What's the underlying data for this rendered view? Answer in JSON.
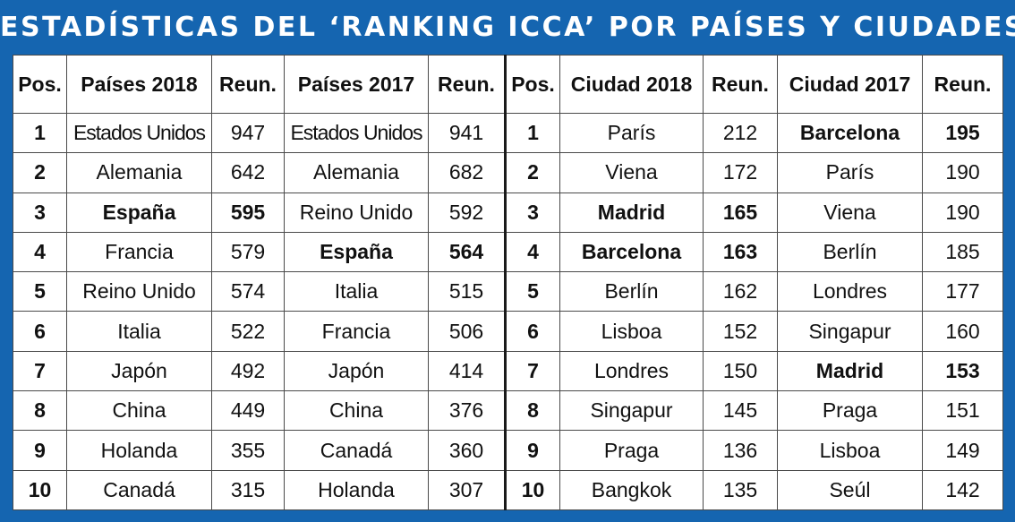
{
  "title": "ESTADÍSTICAS DEL ‘RANKING ICCA’ POR PAÍSES Y CIUDADES",
  "headers": [
    "Pos.",
    "Países 2018",
    "Reun.",
    "Países 2017",
    "Reun.",
    "Pos.",
    "Ciudad 2018",
    "Reun.",
    "Ciudad 2017",
    "Reun."
  ],
  "rows": [
    {
      "pos": "1",
      "pais2018": "Estados Unidos",
      "reun_p2018": "947",
      "pais2017": "Estados Unidos",
      "reun_p2017": "941",
      "pos2": "1",
      "ciudad2018": "París",
      "reun_c2018": "212",
      "ciudad2017": "Barcelona",
      "reun_c2017": "195"
    },
    {
      "pos": "2",
      "pais2018": "Alemania",
      "reun_p2018": "642",
      "pais2017": "Alemania",
      "reun_p2017": "682",
      "pos2": "2",
      "ciudad2018": "Viena",
      "reun_c2018": "172",
      "ciudad2017": "París",
      "reun_c2017": "190"
    },
    {
      "pos": "3",
      "pais2018": "España",
      "reun_p2018": "595",
      "pais2017": "Reino Unido",
      "reun_p2017": "592",
      "pos2": "3",
      "ciudad2018": "Madrid",
      "reun_c2018": "165",
      "ciudad2017": "Viena",
      "reun_c2017": "190"
    },
    {
      "pos": "4",
      "pais2018": "Francia",
      "reun_p2018": "579",
      "pais2017": "España",
      "reun_p2017": "564",
      "pos2": "4",
      "ciudad2018": "Barcelona",
      "reun_c2018": "163",
      "ciudad2017": "Berlín",
      "reun_c2017": "185"
    },
    {
      "pos": "5",
      "pais2018": "Reino Unido",
      "reun_p2018": "574",
      "pais2017": "Italia",
      "reun_p2017": "515",
      "pos2": "5",
      "ciudad2018": "Berlín",
      "reun_c2018": "162",
      "ciudad2017": "Londres",
      "reun_c2017": "177"
    },
    {
      "pos": "6",
      "pais2018": "Italia",
      "reun_p2018": "522",
      "pais2017": "Francia",
      "reun_p2017": "506",
      "pos2": "6",
      "ciudad2018": "Lisboa",
      "reun_c2018": "152",
      "ciudad2017": "Singapur",
      "reun_c2017": "160"
    },
    {
      "pos": "7",
      "pais2018": "Japón",
      "reun_p2018": "492",
      "pais2017": "Japón",
      "reun_p2017": "414",
      "pos2": "7",
      "ciudad2018": "Londres",
      "reun_c2018": "150",
      "ciudad2017": "Madrid",
      "reun_c2017": "153"
    },
    {
      "pos": "8",
      "pais2018": "China",
      "reun_p2018": "449",
      "pais2017": "China",
      "reun_p2017": "376",
      "pos2": "8",
      "ciudad2018": "Singapur",
      "reun_c2018": "145",
      "ciudad2017": "Praga",
      "reun_c2017": "151"
    },
    {
      "pos": "9",
      "pais2018": "Holanda",
      "reun_p2018": "355",
      "pais2017": "Canadá",
      "reun_p2017": "360",
      "pos2": "9",
      "ciudad2018": "Praga",
      "reun_c2018": "136",
      "ciudad2017": "Lisboa",
      "reun_c2017": "149"
    },
    {
      "pos": "10",
      "pais2018": "Canadá",
      "reun_p2018": "315",
      "pais2017": "Holanda",
      "reun_p2017": "307",
      "pos2": "10",
      "ciudad2018": "Bangkok",
      "reun_c2018": "135",
      "ciudad2017": "Seúl",
      "reun_c2017": "142"
    }
  ]
}
